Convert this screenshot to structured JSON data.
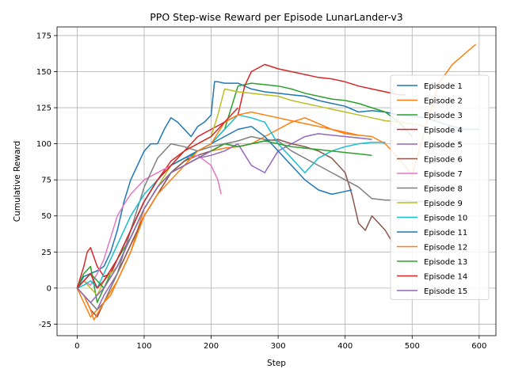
{
  "chart_data": {
    "type": "line",
    "title": "PPO Step-wise Reward per Episode LunarLander-v3",
    "xlabel": "Step",
    "ylabel": "Cumulative Reward",
    "xlim": [
      -30,
      625
    ],
    "ylim": [
      -33,
      181
    ],
    "xticks": [
      0,
      100,
      200,
      300,
      400,
      500,
      600
    ],
    "yticks": [
      -25,
      0,
      25,
      50,
      75,
      100,
      125,
      150,
      175
    ],
    "grid": true,
    "legend_position": "right",
    "series": [
      {
        "name": "Episode 1",
        "color": "#1f77b4",
        "x": [
          0,
          10,
          20,
          30,
          40,
          50,
          60,
          70,
          80,
          90,
          100,
          110,
          120,
          130,
          140,
          150,
          160,
          170,
          180,
          190,
          200,
          205,
          210,
          220,
          240,
          260,
          280,
          300,
          320,
          340,
          360,
          380,
          400,
          420,
          440,
          460,
          480,
          500,
          520,
          540,
          560,
          580,
          600
        ],
        "y": [
          0,
          8,
          10,
          12,
          15,
          25,
          40,
          60,
          75,
          85,
          95,
          100,
          100,
          110,
          118,
          115,
          110,
          105,
          112,
          115,
          120,
          143,
          143,
          142,
          142,
          138,
          136,
          135,
          134,
          133,
          130,
          128,
          126,
          122,
          123,
          122,
          120,
          119,
          118,
          115,
          112,
          110,
          110
        ]
      },
      {
        "name": "Episode 2",
        "color": "#ff7f0e",
        "x": [
          0,
          10,
          20,
          30,
          40,
          50,
          60,
          70,
          80,
          90,
          100,
          120,
          140,
          160,
          180,
          200,
          220,
          240,
          260,
          280,
          300,
          320,
          340,
          360,
          380,
          400,
          420,
          440,
          460,
          480,
          500,
          520,
          540,
          560,
          580,
          595
        ],
        "y": [
          0,
          -10,
          -20,
          -15,
          -10,
          -5,
          5,
          15,
          25,
          40,
          55,
          70,
          80,
          85,
          90,
          95,
          97,
          98,
          100,
          105,
          110,
          115,
          118,
          114,
          110,
          107,
          106,
          105,
          100,
          90,
          78,
          112,
          142,
          155,
          163,
          169
        ]
      },
      {
        "name": "Episode 3",
        "color": "#2ca02c",
        "x": [
          0,
          10,
          20,
          30,
          40,
          50,
          60,
          80,
          100,
          120,
          140,
          160,
          180,
          200,
          220,
          240,
          260,
          280,
          300,
          320,
          340,
          360,
          380,
          400,
          420,
          440,
          460,
          480,
          500
        ],
        "y": [
          0,
          10,
          15,
          -10,
          0,
          10,
          20,
          35,
          55,
          70,
          80,
          88,
          95,
          100,
          110,
          140,
          142,
          141,
          140,
          138,
          135,
          133,
          131,
          130,
          128,
          125,
          122,
          115,
          105
        ]
      },
      {
        "name": "Episode 4",
        "color": "#d62728",
        "x": [
          0,
          10,
          15,
          20,
          30,
          40,
          50,
          60,
          80,
          100,
          120,
          140,
          160,
          180,
          200,
          220,
          240,
          250,
          260,
          280,
          300,
          320,
          340,
          360,
          380,
          400,
          420,
          440,
          460,
          480,
          490
        ],
        "y": [
          0,
          15,
          25,
          28,
          15,
          8,
          10,
          20,
          40,
          60,
          75,
          88,
          95,
          105,
          110,
          115,
          120,
          140,
          150,
          155,
          152,
          150,
          148,
          146,
          145,
          143,
          140,
          138,
          136,
          134,
          134
        ]
      },
      {
        "name": "Episode 5",
        "color": "#9467bd",
        "x": [
          0,
          10,
          20,
          30,
          40,
          60,
          80,
          100,
          120,
          140,
          160,
          180,
          200,
          220,
          240,
          260,
          280,
          300,
          320,
          340,
          360,
          380,
          400,
          420,
          440
        ],
        "y": [
          0,
          -5,
          -10,
          -15,
          -5,
          10,
          30,
          50,
          65,
          80,
          85,
          90,
          92,
          95,
          100,
          85,
          80,
          95,
          100,
          105,
          107,
          106,
          105,
          104,
          103
        ]
      },
      {
        "name": "Episode 6",
        "color": "#8c564b",
        "x": [
          0,
          10,
          20,
          30,
          40,
          60,
          80,
          100,
          120,
          140,
          160,
          180,
          200,
          220,
          240,
          260,
          280,
          300,
          320,
          340,
          360,
          380,
          400,
          410,
          420,
          430,
          440,
          450,
          460,
          470
        ],
        "y": [
          0,
          -5,
          -15,
          -20,
          -10,
          10,
          30,
          50,
          65,
          80,
          88,
          92,
          95,
          100,
          98,
          100,
          102,
          103,
          100,
          98,
          95,
          90,
          80,
          65,
          45,
          40,
          50,
          45,
          40,
          32
        ]
      },
      {
        "name": "Episode 7",
        "color": "#e377c2",
        "x": [
          0,
          10,
          20,
          30,
          40,
          50,
          60,
          70,
          80,
          100,
          120,
          140,
          160,
          180,
          200,
          210,
          215
        ],
        "y": [
          0,
          5,
          2,
          10,
          20,
          35,
          50,
          58,
          65,
          75,
          80,
          85,
          90,
          92,
          85,
          75,
          65
        ]
      },
      {
        "name": "Episode 8",
        "color": "#7f7f7f",
        "x": [
          0,
          10,
          20,
          30,
          40,
          60,
          80,
          100,
          120,
          140,
          160,
          180,
          200,
          220,
          240,
          260,
          280,
          300,
          320,
          340,
          360,
          380,
          400,
          420,
          440,
          460,
          480,
          500,
          520
        ],
        "y": [
          0,
          -5,
          -10,
          -15,
          -10,
          10,
          40,
          70,
          90,
          100,
          98,
          95,
          98,
          100,
          102,
          105,
          103,
          102,
          95,
          90,
          85,
          80,
          75,
          70,
          62,
          61,
          61,
          60,
          60
        ]
      },
      {
        "name": "Episode 9",
        "color": "#bcbd22",
        "x": [
          0,
          10,
          20,
          30,
          40,
          60,
          80,
          100,
          120,
          140,
          160,
          180,
          200,
          210,
          220,
          240,
          260,
          280,
          300,
          320,
          340,
          360,
          380,
          400,
          420,
          440,
          460,
          480,
          500,
          520
        ],
        "y": [
          0,
          5,
          0,
          -5,
          5,
          15,
          35,
          55,
          70,
          85,
          95,
          100,
          105,
          120,
          138,
          136,
          135,
          134,
          133,
          130,
          128,
          126,
          124,
          122,
          120,
          118,
          116,
          115,
          114,
          112
        ]
      },
      {
        "name": "Episode 10",
        "color": "#17becf",
        "x": [
          0,
          10,
          20,
          30,
          40,
          60,
          80,
          100,
          120,
          140,
          160,
          180,
          200,
          220,
          240,
          260,
          280,
          300,
          320,
          340,
          360,
          380,
          400,
          420,
          440,
          460
        ],
        "y": [
          0,
          2,
          5,
          0,
          10,
          30,
          50,
          65,
          75,
          85,
          90,
          95,
          100,
          110,
          120,
          118,
          115,
          100,
          90,
          80,
          90,
          95,
          98,
          100,
          101,
          101
        ]
      },
      {
        "name": "Episode 11",
        "color": "#1f77b4",
        "x": [
          0,
          10,
          20,
          30,
          40,
          60,
          80,
          100,
          120,
          140,
          160,
          180,
          200,
          220,
          240,
          260,
          280,
          300,
          320,
          340,
          360,
          380,
          400,
          410
        ],
        "y": [
          0,
          5,
          10,
          0,
          5,
          20,
          40,
          60,
          75,
          85,
          90,
          95,
          100,
          105,
          110,
          112,
          105,
          95,
          85,
          75,
          68,
          65,
          67,
          68
        ]
      },
      {
        "name": "Episode 12",
        "color": "#ff7f0e",
        "x": [
          0,
          10,
          20,
          25,
          30,
          40,
          60,
          80,
          100,
          120,
          140,
          160,
          180,
          200,
          220,
          240,
          260,
          280,
          300,
          320,
          340,
          360,
          380,
          400,
          420
        ],
        "y": [
          0,
          -5,
          -15,
          -22,
          -18,
          -10,
          5,
          25,
          50,
          65,
          75,
          85,
          95,
          100,
          115,
          120,
          122,
          120,
          118,
          116,
          114,
          112,
          110,
          108,
          106
        ]
      },
      {
        "name": "Episode 13",
        "color": "#2ca02c",
        "x": [
          0,
          10,
          20,
          30,
          40,
          60,
          80,
          100,
          120,
          140,
          160,
          180,
          200,
          220,
          240,
          260,
          280,
          300,
          320,
          340,
          360,
          380,
          400,
          420,
          440
        ],
        "y": [
          0,
          5,
          10,
          5,
          0,
          15,
          35,
          55,
          70,
          80,
          85,
          90,
          95,
          100,
          98,
          100,
          102,
          100,
          98,
          97,
          96,
          95,
          94,
          93,
          92
        ]
      },
      {
        "name": "Episode 14",
        "color": "#d62728",
        "x": [
          0,
          10,
          20,
          30,
          40,
          60,
          80,
          100,
          120,
          140,
          160,
          180,
          200,
          210,
          220,
          230,
          240
        ],
        "y": [
          0,
          5,
          10,
          0,
          5,
          20,
          40,
          60,
          75,
          85,
          95,
          100,
          105,
          110,
          115,
          120,
          125
        ]
      },
      {
        "name": "Episode 15",
        "color": "#9467bd",
        "x": [
          0,
          10,
          20,
          30,
          40,
          60,
          80,
          100,
          120,
          140,
          160,
          180,
          200
        ],
        "y": [
          0,
          -5,
          -10,
          -5,
          0,
          15,
          35,
          55,
          70,
          80,
          85,
          90,
          95
        ]
      }
    ]
  }
}
